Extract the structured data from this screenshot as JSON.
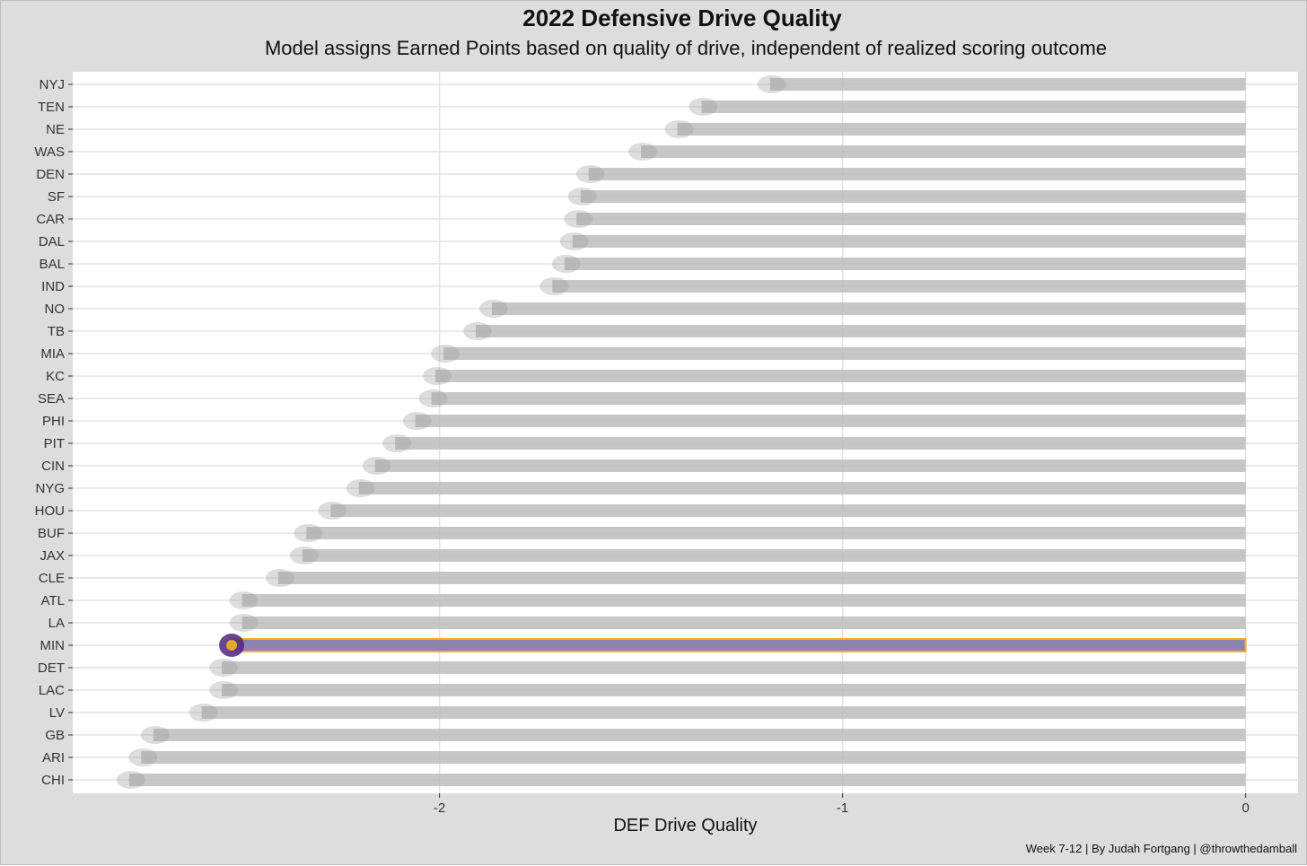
{
  "chart_data": {
    "type": "bar",
    "orientation": "horizontal",
    "title": "2022 Defensive Drive Quality",
    "subtitle": "Model assigns Earned Points based on quality of drive, independent of realized scoring outcome",
    "xlabel": "DEF Drive Quality",
    "ylabel": "",
    "caption": "Week 7-12 | By Judah Fortgang | @throwthedamball",
    "xlim": [
      -2.91,
      0.13
    ],
    "x_ticks": [
      -2,
      -1,
      0
    ],
    "x_tick_labels": [
      "-2",
      "-1",
      "0"
    ],
    "grid": true,
    "legend": "none",
    "highlight": "MIN",
    "colors": {
      "bar": "#bdbdbd",
      "highlight_fill": "#8c84b0",
      "highlight_border": "#f0b429",
      "grid": "#e3e3e3",
      "panel": "#ffffff",
      "background": "#dddddd"
    },
    "categories": [
      "NYJ",
      "TEN",
      "NE",
      "WAS",
      "DEN",
      "SF",
      "CAR",
      "DAL",
      "BAL",
      "IND",
      "NO",
      "TB",
      "MIA",
      "KC",
      "SEA",
      "PHI",
      "PIT",
      "CIN",
      "NYG",
      "HOU",
      "BUF",
      "JAX",
      "CLE",
      "ATL",
      "LA",
      "MIN",
      "DET",
      "LAC",
      "LV",
      "GB",
      "ARI",
      "CHI"
    ],
    "values": [
      -1.18,
      -1.35,
      -1.41,
      -1.5,
      -1.63,
      -1.65,
      -1.66,
      -1.67,
      -1.69,
      -1.72,
      -1.87,
      -1.91,
      -1.99,
      -2.01,
      -2.02,
      -2.06,
      -2.11,
      -2.16,
      -2.2,
      -2.27,
      -2.33,
      -2.34,
      -2.4,
      -2.49,
      -2.49,
      -2.52,
      -2.54,
      -2.54,
      -2.59,
      -2.71,
      -2.74,
      -2.77
    ]
  }
}
